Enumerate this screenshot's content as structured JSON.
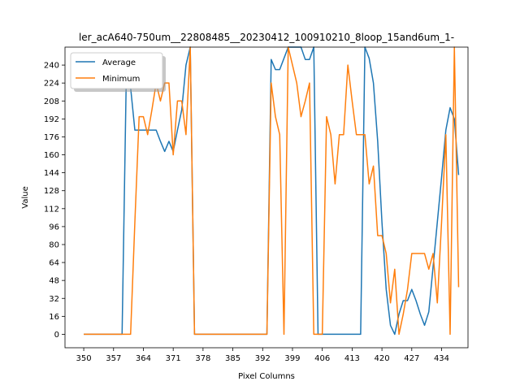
{
  "chart_data": {
    "type": "line",
    "title": "ler_acA640-750um__22808485__20230412_100910210_8loop_15and6um_1-",
    "xlabel": "Pixel Columns",
    "ylabel": "Value",
    "xlim": [
      345.6,
      440.2
    ],
    "ylim": [
      -12,
      256
    ],
    "xticks": [
      350,
      357,
      364,
      371,
      378,
      385,
      392,
      399,
      406,
      413,
      420,
      427,
      434
    ],
    "yticks": [
      0,
      16,
      32,
      48,
      64,
      80,
      96,
      112,
      128,
      144,
      160,
      176,
      192,
      208,
      224,
      240
    ],
    "grid": false,
    "legend_placement": "upper-left",
    "series": [
      {
        "name": "Average",
        "color": "#1f77b4",
        "points": [
          [
            350,
            0
          ],
          [
            351,
            0
          ],
          [
            352,
            0
          ],
          [
            353,
            0
          ],
          [
            354,
            0
          ],
          [
            355,
            0
          ],
          [
            356,
            0
          ],
          [
            357,
            0
          ],
          [
            358,
            0
          ],
          [
            359,
            0
          ],
          [
            360,
            233
          ],
          [
            361,
            220
          ],
          [
            362,
            182
          ],
          [
            363,
            182
          ],
          [
            364,
            182
          ],
          [
            365,
            182
          ],
          [
            366,
            182
          ],
          [
            367,
            182
          ],
          [
            368,
            172
          ],
          [
            369,
            163
          ],
          [
            370,
            172
          ],
          [
            371,
            163
          ],
          [
            372,
            182
          ],
          [
            373,
            200
          ],
          [
            374,
            240
          ],
          [
            375,
            256
          ],
          [
            376,
            0
          ],
          [
            377,
            0
          ],
          [
            378,
            0
          ],
          [
            379,
            0
          ],
          [
            380,
            0
          ],
          [
            381,
            0
          ],
          [
            382,
            0
          ],
          [
            383,
            0
          ],
          [
            384,
            0
          ],
          [
            385,
            0
          ],
          [
            386,
            0
          ],
          [
            387,
            0
          ],
          [
            388,
            0
          ],
          [
            389,
            0
          ],
          [
            390,
            0
          ],
          [
            391,
            0
          ],
          [
            392,
            0
          ],
          [
            393,
            0
          ],
          [
            394,
            245
          ],
          [
            395,
            236
          ],
          [
            396,
            236
          ],
          [
            397,
            246
          ],
          [
            398,
            256
          ],
          [
            399,
            256
          ],
          [
            400,
            256
          ],
          [
            401,
            256
          ],
          [
            402,
            245
          ],
          [
            403,
            245
          ],
          [
            404,
            256
          ],
          [
            405,
            0
          ],
          [
            406,
            0
          ],
          [
            407,
            0
          ],
          [
            408,
            0
          ],
          [
            409,
            0
          ],
          [
            410,
            0
          ],
          [
            411,
            0
          ],
          [
            412,
            0
          ],
          [
            413,
            0
          ],
          [
            414,
            0
          ],
          [
            415,
            0
          ],
          [
            416,
            256
          ],
          [
            417,
            246
          ],
          [
            418,
            224
          ],
          [
            419,
            172
          ],
          [
            420,
            100
          ],
          [
            421,
            40
          ],
          [
            422,
            8
          ],
          [
            423,
            0
          ],
          [
            424,
            18
          ],
          [
            425,
            30
          ],
          [
            426,
            30
          ],
          [
            427,
            40
          ],
          [
            428,
            30
          ],
          [
            429,
            18
          ],
          [
            430,
            8
          ],
          [
            431,
            20
          ],
          [
            432,
            60
          ],
          [
            433,
            100
          ],
          [
            434,
            140
          ],
          [
            435,
            182
          ],
          [
            436,
            202
          ],
          [
            437,
            192
          ],
          [
            438,
            142
          ]
        ]
      },
      {
        "name": "Minimum",
        "color": "#ff7f0e",
        "points": [
          [
            350,
            0
          ],
          [
            351,
            0
          ],
          [
            352,
            0
          ],
          [
            353,
            0
          ],
          [
            354,
            0
          ],
          [
            355,
            0
          ],
          [
            356,
            0
          ],
          [
            357,
            0
          ],
          [
            358,
            0
          ],
          [
            359,
            0
          ],
          [
            360,
            0
          ],
          [
            361,
            0
          ],
          [
            362,
            100
          ],
          [
            363,
            194
          ],
          [
            364,
            194
          ],
          [
            365,
            178
          ],
          [
            366,
            200
          ],
          [
            367,
            224
          ],
          [
            368,
            208
          ],
          [
            369,
            224
          ],
          [
            370,
            224
          ],
          [
            371,
            160
          ],
          [
            372,
            208
          ],
          [
            373,
            208
          ],
          [
            374,
            178
          ],
          [
            375,
            256
          ],
          [
            376,
            0
          ],
          [
            377,
            0
          ],
          [
            378,
            0
          ],
          [
            379,
            0
          ],
          [
            380,
            0
          ],
          [
            381,
            0
          ],
          [
            382,
            0
          ],
          [
            383,
            0
          ],
          [
            384,
            0
          ],
          [
            385,
            0
          ],
          [
            386,
            0
          ],
          [
            387,
            0
          ],
          [
            388,
            0
          ],
          [
            389,
            0
          ],
          [
            390,
            0
          ],
          [
            391,
            0
          ],
          [
            392,
            0
          ],
          [
            393,
            0
          ],
          [
            394,
            224
          ],
          [
            395,
            194
          ],
          [
            396,
            178
          ],
          [
            397,
            0
          ],
          [
            398,
            256
          ],
          [
            399,
            240
          ],
          [
            400,
            224
          ],
          [
            401,
            194
          ],
          [
            402,
            208
          ],
          [
            403,
            224
          ],
          [
            404,
            0
          ],
          [
            405,
            0
          ],
          [
            406,
            0
          ],
          [
            407,
            194
          ],
          [
            408,
            178
          ],
          [
            409,
            134
          ],
          [
            410,
            178
          ],
          [
            411,
            178
          ],
          [
            412,
            240
          ],
          [
            413,
            208
          ],
          [
            414,
            178
          ],
          [
            415,
            178
          ],
          [
            416,
            178
          ],
          [
            417,
            134
          ],
          [
            418,
            150
          ],
          [
            419,
            88
          ],
          [
            420,
            88
          ],
          [
            421,
            72
          ],
          [
            422,
            28
          ],
          [
            423,
            58
          ],
          [
            424,
            0
          ],
          [
            425,
            18
          ],
          [
            426,
            40
          ],
          [
            427,
            72
          ],
          [
            428,
            72
          ],
          [
            429,
            72
          ],
          [
            430,
            72
          ],
          [
            431,
            58
          ],
          [
            432,
            72
          ],
          [
            433,
            28
          ],
          [
            434,
            100
          ],
          [
            435,
            178
          ],
          [
            436,
            0
          ],
          [
            437,
            256
          ],
          [
            438,
            42
          ]
        ]
      }
    ]
  }
}
